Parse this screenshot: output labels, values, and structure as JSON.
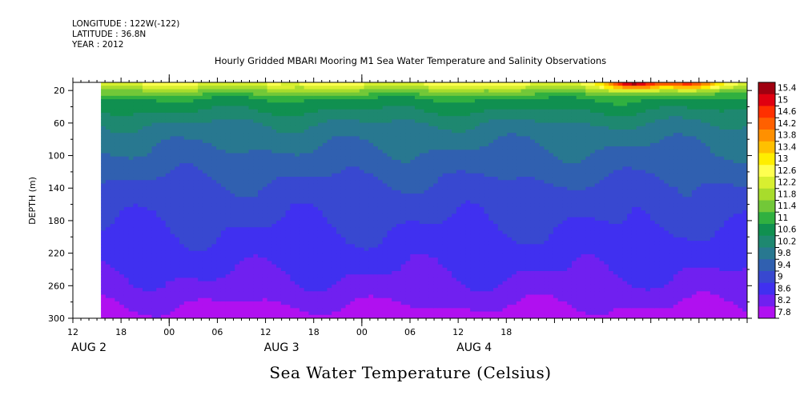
{
  "meta": {
    "longitude": "LONGITUDE : 122W(-122)",
    "latitude": "LATITUDE : 36.8N",
    "year": "YEAR : 2012"
  },
  "chart_data": {
    "type": "heatmap",
    "title": "Hourly Gridded MBARI Mooring M1 Sea Water Temperature and Salinity Observations",
    "xlabel": "",
    "ylabel": "DEPTH (m)",
    "colorbar_title": "Sea Water Temperature (Celsius)",
    "x_hour_range": [
      12,
      96
    ],
    "data_start_hour": 15.5,
    "x_ticks": [
      {
        "hour": 12,
        "label": "12"
      },
      {
        "hour": 18,
        "label": "18"
      },
      {
        "hour": 24,
        "label": "00"
      },
      {
        "hour": 30,
        "label": "06"
      },
      {
        "hour": 36,
        "label": "12"
      },
      {
        "hour": 42,
        "label": "18"
      },
      {
        "hour": 48,
        "label": "00"
      },
      {
        "hour": 54,
        "label": "06"
      },
      {
        "hour": 60,
        "label": "12"
      },
      {
        "hour": 66,
        "label": "18"
      }
    ],
    "day_labels": [
      {
        "hour": 14,
        "label": "AUG  2"
      },
      {
        "hour": 38,
        "label": "AUG  3"
      },
      {
        "hour": 62,
        "label": "AUG  4"
      }
    ],
    "ylim": [
      300,
      10
    ],
    "y_ticks": [
      20,
      60,
      100,
      140,
      180,
      220,
      260,
      300
    ],
    "colorbar_levels": [
      "15.4",
      "15",
      "14.6",
      "14.2",
      "13.8",
      "13.4",
      "13",
      "12.6",
      "12.2",
      "11.8",
      "11.4",
      "11",
      "10.6",
      "10.2",
      "9.8",
      "9.4",
      "9",
      "8.6",
      "8.2",
      "7.8"
    ],
    "colorbar_colors": [
      "#a00010",
      "#e00010",
      "#ff3000",
      "#ff6000",
      "#ff9000",
      "#ffc000",
      "#ffee00",
      "#ffff50",
      "#d8ef30",
      "#a8dc2c",
      "#72c838",
      "#30b040",
      "#109050",
      "#1e8870",
      "#287890",
      "#3060b0",
      "#3848d0",
      "#4030f0",
      "#7020f0",
      "#b010f0"
    ],
    "depth_profile": [
      {
        "depth": 10,
        "temp": 12.8
      },
      {
        "depth": 15,
        "temp": 12.3
      },
      {
        "depth": 20,
        "temp": 11.8
      },
      {
        "depth": 30,
        "temp": 11.0
      },
      {
        "depth": 45,
        "temp": 10.6
      },
      {
        "depth": 60,
        "temp": 10.2
      },
      {
        "depth": 80,
        "temp": 9.9
      },
      {
        "depth": 100,
        "temp": 9.7
      },
      {
        "depth": 140,
        "temp": 9.3
      },
      {
        "depth": 180,
        "temp": 9.05
      },
      {
        "depth": 220,
        "temp": 8.8
      },
      {
        "depth": 260,
        "temp": 8.5
      },
      {
        "depth": 300,
        "temp": 8.0
      }
    ],
    "surface_warm_events": [
      {
        "hour": 82,
        "depth": 12,
        "temp": 15.3
      },
      {
        "hour": 89,
        "depth": 12,
        "temp": 14.6
      }
    ]
  }
}
